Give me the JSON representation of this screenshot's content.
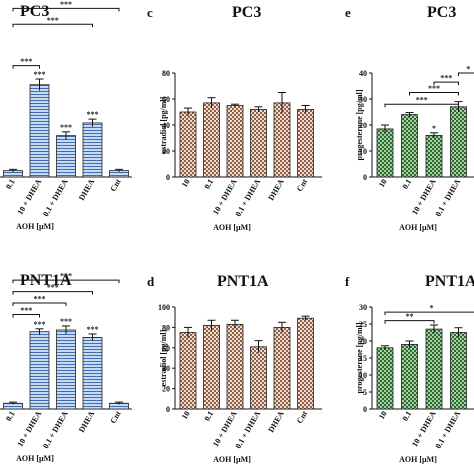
{
  "chart_data": [
    {
      "id": "a",
      "panel_letter": "",
      "title": "PC3",
      "type": "bar",
      "categories": [
        "0.1",
        "10 + DHEA",
        "0.1 + DHEA",
        "DHEA",
        "Cnt"
      ],
      "values": [
        1.0,
        14.5,
        6.5,
        8.5,
        1.0
      ],
      "errors": [
        0.2,
        0.9,
        0.6,
        0.6,
        0.2
      ],
      "ylim": [
        0,
        22
      ],
      "yticks": [],
      "ylabel": "",
      "xlabel": "AOH [µM]",
      "bar_labels": [
        "",
        "***",
        "***",
        "***",
        ""
      ],
      "brackets": [
        {
          "from": 0,
          "to": 1,
          "y": 17.5,
          "label": "***"
        },
        {
          "from": 1,
          "to": 2,
          "y": 33.0,
          "label": "***"
        },
        {
          "from": 1,
          "to": 3,
          "y": 31.0,
          "label": "***"
        },
        {
          "from": 1,
          "to": 4,
          "y": 29.0,
          "label": "***"
        },
        {
          "from": 0,
          "to": 4,
          "y": 26.5,
          "label": "***"
        },
        {
          "from": 0,
          "to": 3,
          "y": 24.0,
          "label": "***"
        }
      ],
      "color": "#5b86c4",
      "pattern": "hlines"
    },
    {
      "id": "c",
      "panel_letter": "c",
      "title": "PC3",
      "type": "bar",
      "categories": [
        "10",
        "0.1",
        "10 + DHEA",
        "0.1 + DHEA",
        "DHEA",
        "Cnt"
      ],
      "values": [
        50,
        57,
        55,
        52,
        57,
        52
      ],
      "errors": [
        3,
        4,
        1,
        2,
        8,
        3
      ],
      "ylim": [
        0,
        80
      ],
      "yticks": [
        0,
        20,
        40,
        60,
        80
      ],
      "ylabel": "estradiol [pg/ml]",
      "xlabel": "AOH [µM]",
      "bar_labels": [
        "",
        "",
        "",
        "",
        "",
        ""
      ],
      "brackets": [],
      "color": "#a97e6a",
      "pattern": "checker"
    },
    {
      "id": "e",
      "panel_letter": "e",
      "title": "PC3",
      "type": "bar",
      "categories": [
        "10",
        "0.1",
        "10 + DHEA",
        "0.1 + DHEA"
      ],
      "values": [
        18.5,
        24,
        16.0,
        27
      ],
      "errors": [
        1.5,
        0.8,
        1.0,
        2.0
      ],
      "ylim": [
        0,
        40
      ],
      "yticks": [
        0,
        10,
        20,
        30,
        40
      ],
      "ylabel": "progesterone [pg/ml]",
      "xlabel": "AOH [µM]",
      "bar_labels": [
        "",
        "",
        "*",
        ""
      ],
      "brackets": [
        {
          "from": 2,
          "to": 3,
          "y": 36.5,
          "label": "***"
        },
        {
          "from": 1,
          "to": 3,
          "y": 32.5,
          "label": "***"
        },
        {
          "from": 0,
          "to": 3,
          "y": 28.0,
          "label": "***"
        },
        {
          "from": 3,
          "to": 3.8,
          "y": 40.0,
          "label": "*"
        }
      ],
      "color": "#3f7a43",
      "pattern": "checker"
    },
    {
      "id": "b",
      "panel_letter": "",
      "title": "PNT1A",
      "type": "bar",
      "categories": [
        "0.1",
        "10 + DHEA",
        "0.1 + DHEA",
        "DHEA",
        "Cnt"
      ],
      "values": [
        1.0,
        13.5,
        13.8,
        12.5,
        1.0
      ],
      "errors": [
        0.2,
        0.5,
        0.7,
        0.6,
        0.2
      ],
      "ylim": [
        0,
        22
      ],
      "yticks": [],
      "ylabel": "",
      "xlabel": "AOH [µM]",
      "bar_labels": [
        "",
        "***",
        "***",
        "***",
        ""
      ],
      "brackets": [
        {
          "from": 0,
          "to": 1,
          "y": 16.5,
          "label": "***"
        },
        {
          "from": 0,
          "to": 2,
          "y": 18.5,
          "label": "***"
        },
        {
          "from": 0,
          "to": 3,
          "y": 20.5,
          "label": "***"
        },
        {
          "from": 0,
          "to": 4,
          "y": 22.5,
          "label": "***"
        }
      ],
      "color": "#5b86c4",
      "pattern": "hlines"
    },
    {
      "id": "d",
      "panel_letter": "d",
      "title": "PNT1A",
      "type": "bar",
      "categories": [
        "10",
        "0.1",
        "10 + DHEA",
        "0.1 + DHEA",
        "DHEA",
        "Cnt"
      ],
      "values": [
        75,
        82,
        83,
        61,
        80,
        89
      ],
      "errors": [
        5,
        5,
        4,
        6,
        5,
        2
      ],
      "ylim": [
        0,
        100
      ],
      "yticks": [
        0,
        20,
        40,
        60,
        80,
        100
      ],
      "ylabel": "estradiol [pg/ml]",
      "xlabel": "AOH [µM]",
      "bar_labels": [
        "",
        "",
        "",
        "",
        "",
        ""
      ],
      "brackets": [],
      "color": "#a97e6a",
      "pattern": "checker"
    },
    {
      "id": "f",
      "panel_letter": "f",
      "title": "PNT1A",
      "type": "bar",
      "categories": [
        "10",
        "0.1",
        "10 + DHEA",
        "0.1 + DHEA"
      ],
      "values": [
        18,
        19,
        23.5,
        22.5
      ],
      "errors": [
        0.6,
        1.0,
        1.2,
        1.4
      ],
      "ylim": [
        0,
        30
      ],
      "yticks": [
        0,
        5,
        10,
        15,
        20,
        25,
        30
      ],
      "ylabel": "progesterone [pg/ml]",
      "xlabel": "AOH [µM]",
      "bar_labels": [
        "",
        "",
        "",
        ""
      ],
      "brackets": [
        {
          "from": 0,
          "to": 2,
          "y": 26.0,
          "label": "**"
        },
        {
          "from": 0,
          "to": 3.8,
          "y": 28.5,
          "label": "*"
        }
      ],
      "color": "#3f7a43",
      "pattern": "checker"
    }
  ]
}
